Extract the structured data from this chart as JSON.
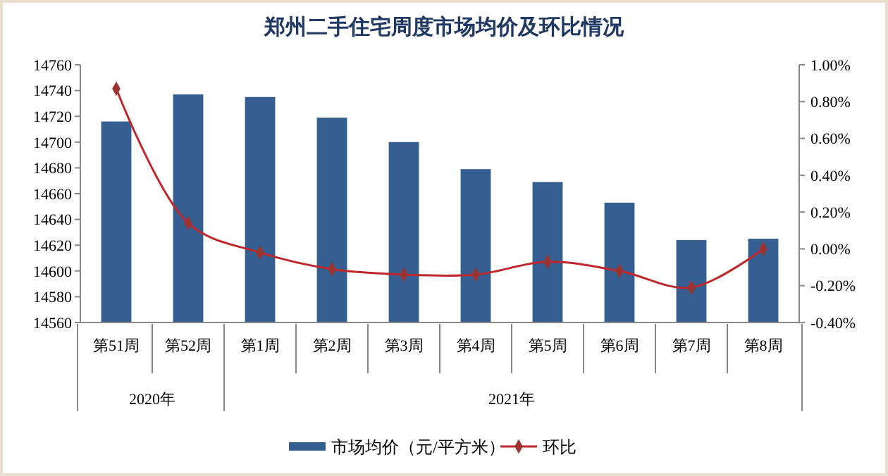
{
  "chart_data": {
    "type": "bar",
    "title": "郑州二手住宅周度市场均价及环比情况",
    "categories": [
      "第51周",
      "第52周",
      "第1周",
      "第2周",
      "第3周",
      "第4周",
      "第5周",
      "第6周",
      "第7周",
      "第8周"
    ],
    "series": [
      {
        "name": "市场均价（元/平方米）",
        "color": "#365f91",
        "values": [
          14716,
          14737,
          14735,
          14719,
          14700,
          14679,
          14669,
          14653,
          14624,
          14625
        ]
      },
      {
        "name": "环比",
        "type": "line",
        "axis": "y2",
        "color": "#c0272d",
        "marker": "diamond",
        "values": [
          0.87,
          0.14,
          -0.02,
          -0.11,
          -0.14,
          -0.14,
          -0.07,
          -0.12,
          -0.21,
          0.0
        ]
      }
    ],
    "ylim": [
      14560,
      14760
    ],
    "yticks": [
      14560,
      14580,
      14600,
      14620,
      14640,
      14660,
      14680,
      14700,
      14720,
      14740,
      14760
    ],
    "y2lim": [
      -0.4,
      1.0
    ],
    "y2ticks": [
      {
        "value": -0.4,
        "label": "-0.40%"
      },
      {
        "value": -0.2,
        "label": "-0.20%"
      },
      {
        "value": 0,
        "label": "0.00%"
      },
      {
        "value": 0.2,
        "label": "0.20%"
      },
      {
        "value": 0.4,
        "label": "0.40%"
      },
      {
        "value": 0.6,
        "label": "0.60%"
      },
      {
        "value": 0.8,
        "label": "0.80%"
      },
      {
        "value": 1.0,
        "label": "1.00%"
      }
    ],
    "annotations": [
      "2020年",
      "2021年"
    ],
    "grid": false,
    "legend": "bottom"
  }
}
